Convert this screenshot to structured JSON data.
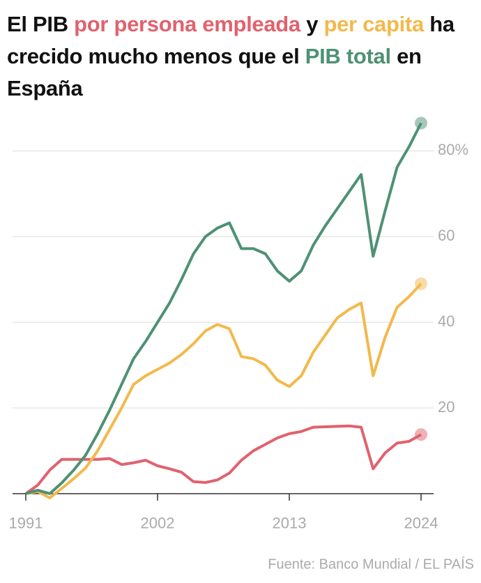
{
  "chart_data": {
    "type": "line",
    "title_parts": [
      "El PIB ",
      " y ",
      " ha crecido mucho menos que el ",
      " en España"
    ],
    "source": "Fuente: Banco Mundial / EL PAÍS",
    "x": [
      1991,
      1992,
      1993,
      1994,
      1995,
      1996,
      1997,
      1998,
      1999,
      2000,
      2001,
      2002,
      2003,
      2004,
      2005,
      2006,
      2007,
      2008,
      2009,
      2010,
      2011,
      2012,
      2013,
      2014,
      2015,
      2016,
      2017,
      2018,
      2019,
      2020,
      2021,
      2022,
      2023,
      2024
    ],
    "series": [
      {
        "name": "por persona empleada",
        "color": "#e0626e",
        "values": [
          0,
          2,
          5.5,
          8,
          8,
          8,
          8,
          8.2,
          6.8,
          7.2,
          7.8,
          6.5,
          5.8,
          5,
          2.8,
          2.6,
          3.2,
          4.8,
          7.8,
          10,
          11.5,
          13,
          14,
          14.5,
          15.5,
          15.6,
          15.7,
          15.8,
          15.5,
          5.8,
          9.5,
          11.8,
          12.2,
          13.8
        ]
      },
      {
        "name": "per capita",
        "color": "#f2b94b",
        "values": [
          0,
          0.5,
          -1,
          1.2,
          3.5,
          6,
          10,
          15,
          20,
          25.5,
          27.5,
          29,
          30.5,
          32.5,
          35,
          38,
          39.5,
          38.5,
          32,
          31.5,
          30,
          26.5,
          25,
          27.5,
          33,
          37,
          41,
          43,
          44.5,
          27.5,
          36.5,
          43.5,
          46,
          49
        ]
      },
      {
        "name": "PIB total",
        "color": "#4e9175",
        "values": [
          0,
          0.8,
          0,
          2.5,
          5.5,
          9,
          14,
          19.5,
          25.5,
          31.5,
          35.5,
          40,
          44.5,
          50,
          56,
          60,
          62,
          63.2,
          57.2,
          57.2,
          56,
          52,
          49.6,
          52,
          58,
          62.5,
          66.5,
          70.5,
          74.5,
          55.4,
          66,
          76.2,
          81,
          86.5
        ]
      }
    ],
    "xlim": [
      1991,
      2024
    ],
    "xticks": [
      1991,
      2002,
      2013,
      2024
    ],
    "ylim": [
      -1,
      90
    ],
    "yticks": [
      20,
      40,
      60,
      {
        "value": 80,
        "label": "80%"
      }
    ],
    "grid": true
  }
}
